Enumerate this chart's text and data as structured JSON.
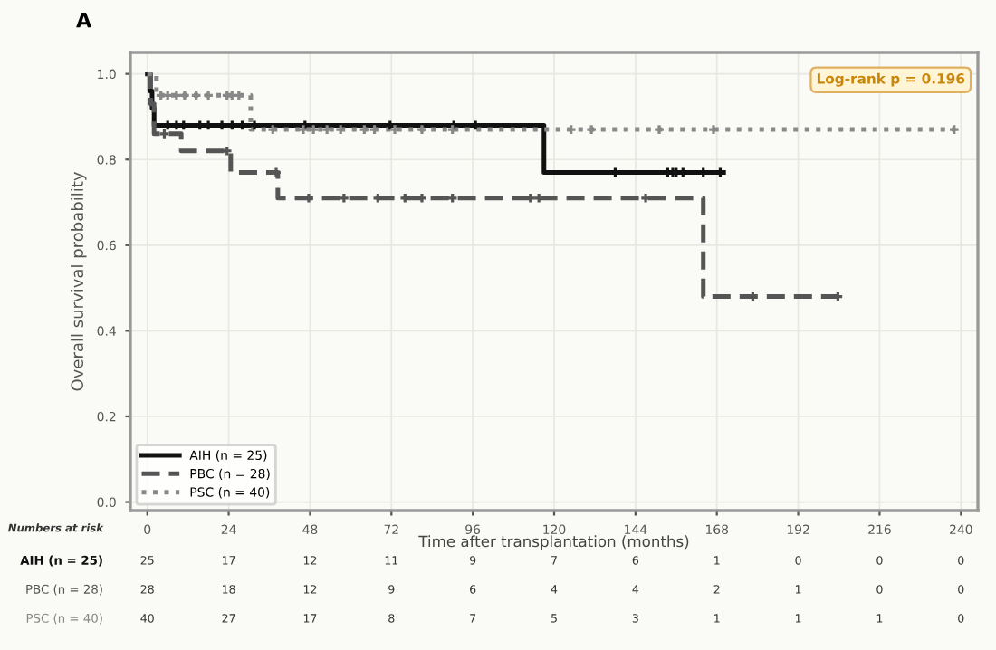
{
  "chart_data": {
    "type": "step",
    "title": "A",
    "xlabel": "Time after transplantation (months)",
    "ylabel": "Overall survival probability",
    "xlim": [
      -5,
      245
    ],
    "ylim": [
      -0.02,
      1.05
    ],
    "xticks": [
      0,
      24,
      48,
      72,
      96,
      120,
      144,
      168,
      192,
      216,
      240
    ],
    "yticks": [
      {
        "value": 0,
        "label": "0.0"
      },
      0.2,
      0.4,
      0.6,
      0.8,
      {
        "value": 1,
        "label": "1.0"
      }
    ],
    "grid": true,
    "legend": "bottom left",
    "series": [
      {
        "name": "AIH (n = 25)",
        "color": "#111111",
        "line_style": "solid",
        "x": [
          0,
          0.7,
          1.4,
          2,
          117,
          170
        ],
        "values": [
          1.0,
          0.96,
          0.92,
          0.88,
          0.77,
          0.77
        ]
      },
      {
        "name": "PBC (n = 28)",
        "color": "#555555",
        "line_style": "dashed",
        "x": [
          0,
          1,
          2,
          10,
          24.6,
          38.5,
          164,
          204
        ],
        "values": [
          1.0,
          0.93,
          0.86,
          0.82,
          0.77,
          0.71,
          0.48,
          0.48
        ]
      },
      {
        "name": "PSC (n = 40)",
        "color": "#888888",
        "line_style": "dotted",
        "x": [
          0,
          2.7,
          30.5,
          238
        ],
        "values": [
          1.0,
          0.95,
          0.87,
          0.87
        ]
      },
      {
        "type": "scatter",
        "marker": "cross",
        "color": "#111111",
        "x": [
          6,
          8.6,
          10.7,
          15.5,
          18,
          22,
          25,
          28,
          31.6,
          46.5,
          71.6,
          90.4,
          96.8,
          138,
          153.5,
          155,
          156,
          158,
          164,
          169
        ],
        "values": [
          0.88,
          0.88,
          0.88,
          0.88,
          0.88,
          0.88,
          0.88,
          0.88,
          0.88,
          0.88,
          0.88,
          0.88,
          0.88,
          0.77,
          0.77,
          0.77,
          0.77,
          0.77,
          0.77,
          0.77
        ]
      },
      {
        "type": "scatter",
        "marker": "cross",
        "color": "#555555",
        "x": [
          5,
          23.5,
          38,
          47.6,
          58,
          68,
          76,
          81,
          90,
          113,
          115.5,
          147,
          178.6,
          203.7
        ],
        "values": [
          0.86,
          0.82,
          0.77,
          0.71,
          0.71,
          0.71,
          0.71,
          0.71,
          0.71,
          0.71,
          0.71,
          0.71,
          0.48,
          0.48
        ]
      },
      {
        "type": "scatter",
        "marker": "cross",
        "color": "#888888",
        "x": [
          4,
          6,
          8.6,
          11,
          14.4,
          18,
          23.5,
          25,
          27,
          37,
          46,
          49,
          53,
          57,
          64,
          67,
          73,
          81,
          90,
          125,
          131,
          151,
          167,
          238
        ],
        "values": [
          0.95,
          0.95,
          0.95,
          0.95,
          0.95,
          0.95,
          0.95,
          0.95,
          0.95,
          0.87,
          0.87,
          0.87,
          0.87,
          0.87,
          0.87,
          0.87,
          0.87,
          0.87,
          0.87,
          0.87,
          0.87,
          0.87,
          0.87,
          0.87
        ]
      }
    ],
    "annotations": [
      "Log-rank p = 0.196",
      "Numbers at risk",
      "AIH (n = 25)",
      "25",
      "17",
      "12",
      "11",
      "9",
      "7",
      "6",
      "1",
      "0",
      "0",
      "0",
      "PBC (n = 28)",
      "28",
      "18",
      "12",
      "9",
      "6",
      "4",
      "4",
      "2",
      "1",
      "0",
      "0",
      "PSC (n = 40)",
      "40",
      "27",
      "17",
      "8",
      "7",
      "5",
      "3",
      "1",
      "1",
      "1",
      "0"
    ]
  }
}
